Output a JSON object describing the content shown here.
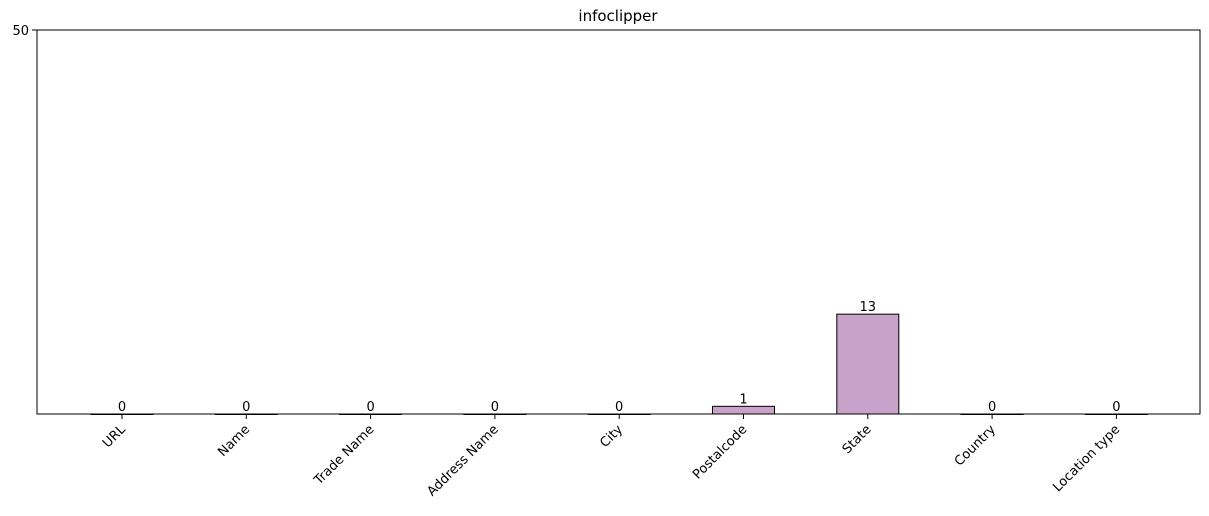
{
  "chart_data": {
    "type": "bar",
    "title": "infoclipper",
    "xlabel": "",
    "ylabel": "",
    "categories": [
      "URL",
      "Name",
      "Trade Name",
      "Address Name",
      "City",
      "Postalcode",
      "State",
      "Country",
      "Location type"
    ],
    "values": [
      0,
      0,
      0,
      0,
      0,
      1,
      13,
      0,
      0
    ],
    "data_labels": [
      "0",
      "0",
      "0",
      "0",
      "0",
      "1",
      "13",
      "0",
      "0"
    ],
    "ylim": [
      0,
      50
    ],
    "yticks": [
      "50"
    ],
    "grid": false,
    "bar_color": "#c8a2c8",
    "bar_edge_color": "#000000"
  }
}
